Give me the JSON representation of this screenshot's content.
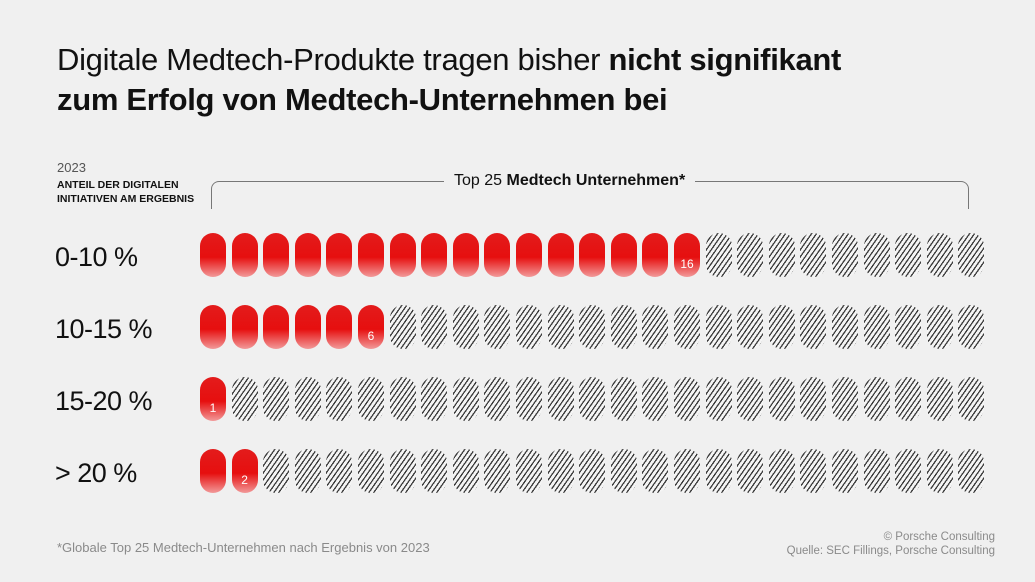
{
  "title": {
    "regular": "Digitale Medtech-Produkte tragen bisher ",
    "bold_a": "nicht signifikant",
    "bold_b": "zum Erfolg von Medtech-Unternehmen bei"
  },
  "axis": {
    "year": "2023",
    "label": "ANTEIL DER DIGITALEN INITIATIVEN AM ERGEBNIS"
  },
  "bracket": {
    "prefix": "Top 25 ",
    "bold": "Medtech Unternehmen*"
  },
  "colors": {
    "highlight": "#e60f0f",
    "hatch": "#3a3a3a",
    "background": "#f0f0f0"
  },
  "chart_data": {
    "type": "bar",
    "title": "Digitale Medtech-Produkte tragen bisher nicht signifikant zum Erfolg von Medtech-Unternehmen bei",
    "total": 25,
    "categories": [
      "0-10 %",
      "10-15 %",
      "15-20 %",
      "> 20 %"
    ],
    "values": [
      16,
      6,
      1,
      2
    ],
    "value_labels": [
      "16",
      "6",
      "1",
      "2"
    ],
    "unit": "Unternehmen"
  },
  "footnote": "*Globale Top 25 Medtech-Unternehmen nach Ergebnis von 2023",
  "credit": {
    "line1": "© Porsche Consulting",
    "line2": "Quelle: SEC Fillings, Porsche Consulting"
  }
}
